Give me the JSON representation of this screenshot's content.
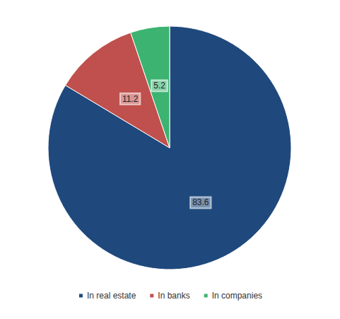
{
  "chart_data": {
    "type": "pie",
    "categories": [
      "In real estate",
      "In banks",
      "In companies"
    ],
    "values": [
      83.6,
      11.2,
      5.2
    ],
    "colors": [
      "#1f497d",
      "#c0504d",
      "#3cb371"
    ],
    "legend": "bottom",
    "data_labels": true
  }
}
